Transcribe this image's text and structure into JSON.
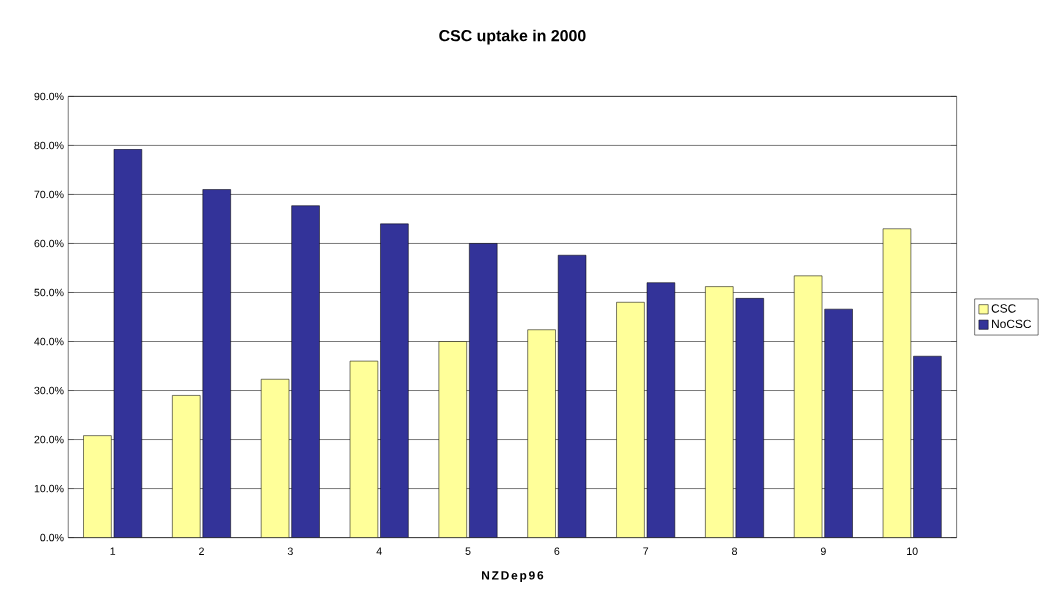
{
  "chart_data": {
    "type": "bar",
    "title": "CSC uptake in 2000",
    "xlabel": "NZDep96",
    "categories": [
      "1",
      "2",
      "3",
      "4",
      "5",
      "6",
      "7",
      "8",
      "9",
      "10"
    ],
    "series": [
      {
        "name": "CSC",
        "color": "#ffff99",
        "values": [
          20.8,
          29.0,
          32.3,
          36.0,
          40.0,
          42.4,
          48.0,
          51.2,
          53.4,
          63.0
        ]
      },
      {
        "name": "NoCSC",
        "color": "#333399",
        "values": [
          79.2,
          71.0,
          67.7,
          64.0,
          60.0,
          57.6,
          52.0,
          48.8,
          46.6,
          37.0
        ]
      }
    ],
    "ylim": [
      0,
      90
    ],
    "yticks": [
      {
        "value": 0,
        "label": "0.0%"
      },
      {
        "value": 10,
        "label": "10.0%"
      },
      {
        "value": 20,
        "label": "20.0%"
      },
      {
        "value": 30,
        "label": "30.0%"
      },
      {
        "value": 40,
        "label": "40.0%"
      },
      {
        "value": 50,
        "label": "50.0%"
      },
      {
        "value": 60,
        "label": "60.0%"
      },
      {
        "value": 70,
        "label": "70.0%"
      },
      {
        "value": 80,
        "label": "80.0%"
      },
      {
        "value": 90,
        "label": "90.0%"
      }
    ],
    "grid": "y",
    "legend": "right"
  }
}
